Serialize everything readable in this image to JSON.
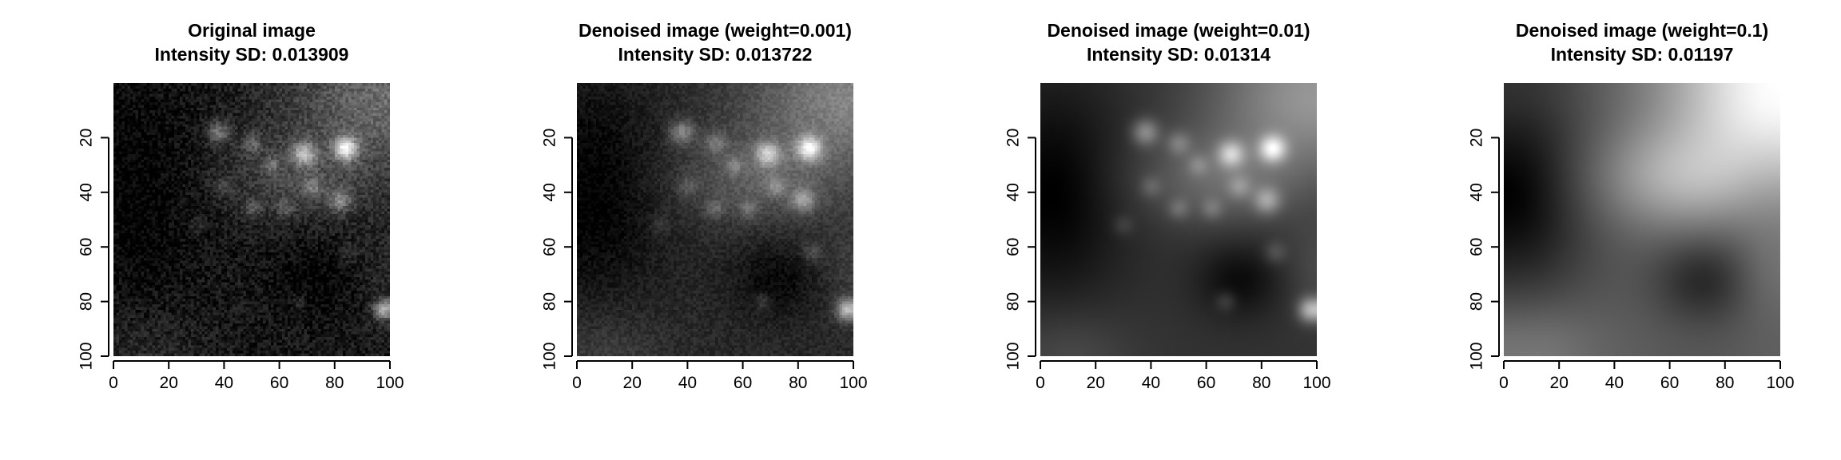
{
  "panels": [
    {
      "id": "original",
      "title_line1": "Original image",
      "title_line2": "Intensity SD: 0.013909",
      "x_ticks": [
        "0",
        "20",
        "40",
        "60",
        "80",
        "100"
      ],
      "y_ticks": [
        "20",
        "40",
        "60",
        "80",
        "100"
      ],
      "smoothing": 0,
      "noise": 0.09,
      "contrast": 0.85
    },
    {
      "id": "weight-0.001",
      "title_line1": "Denoised image (weight=0.001)",
      "title_line2": "Intensity SD: 0.013722",
      "x_ticks": [
        "0",
        "20",
        "40",
        "60",
        "80",
        "100"
      ],
      "y_ticks": [
        "20",
        "40",
        "60",
        "80",
        "100"
      ],
      "smoothing": 0.5,
      "noise": 0.05,
      "contrast": 1.05
    },
    {
      "id": "weight-0.01",
      "title_line1": "Denoised image (weight=0.01)",
      "title_line2": "Intensity SD: 0.01314",
      "x_ticks": [
        "0",
        "20",
        "40",
        "60",
        "80",
        "100"
      ],
      "y_ticks": [
        "20",
        "40",
        "60",
        "80",
        "100"
      ],
      "smoothing": 2,
      "noise": 0,
      "contrast": 1.15
    },
    {
      "id": "weight-0.1",
      "title_line1": "Denoised image (weight=0.1)",
      "title_line2": "Intensity SD: 0.01197",
      "x_ticks": [
        "0",
        "20",
        "40",
        "60",
        "80",
        "100"
      ],
      "y_ticks": [
        "20",
        "40",
        "60",
        "80",
        "100"
      ],
      "smoothing": 8,
      "noise": 0,
      "contrast": 1.25
    }
  ],
  "colors": {
    "background": "#ffffff",
    "axis": "#000000",
    "image_dark": "#000000",
    "image_light": "#ffffff"
  }
}
